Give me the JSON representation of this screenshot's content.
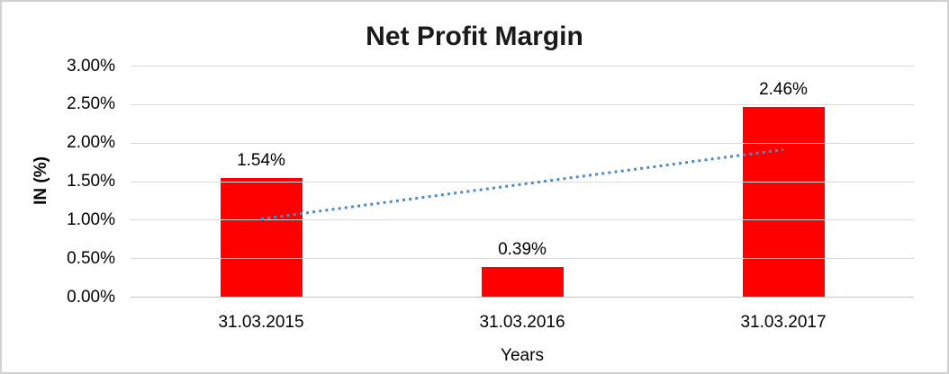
{
  "chart_data": {
    "type": "bar",
    "title": "Net Profit Margin",
    "xlabel": "Years",
    "ylabel": "IN (%)",
    "categories": [
      "31.03.2015",
      "31.03.2016",
      "31.03.2017"
    ],
    "values": [
      1.54,
      0.39,
      2.46
    ],
    "data_labels": [
      "1.54%",
      "0.39%",
      "2.46%"
    ],
    "y_ticks": [
      {
        "value": 0.0,
        "label": "0.00%"
      },
      {
        "value": 0.5,
        "label": "0.50%"
      },
      {
        "value": 1.0,
        "label": "1.00%"
      },
      {
        "value": 1.5,
        "label": "1.50%"
      },
      {
        "value": 2.0,
        "label": "2.00%"
      },
      {
        "value": 2.5,
        "label": "2.50%"
      },
      {
        "value": 3.0,
        "label": "3.00%"
      }
    ],
    "ylim": [
      0,
      3
    ],
    "grid": "horizontal",
    "legend": "none",
    "bar_color": "#ff0000",
    "gridline_color": "#d9d9d9",
    "trendline": {
      "kind": "linear-dotted",
      "color": "#4e8ac8",
      "start_value": 1.01,
      "end_value": 1.91,
      "start_category_index": 0,
      "end_category_index": 2
    }
  }
}
